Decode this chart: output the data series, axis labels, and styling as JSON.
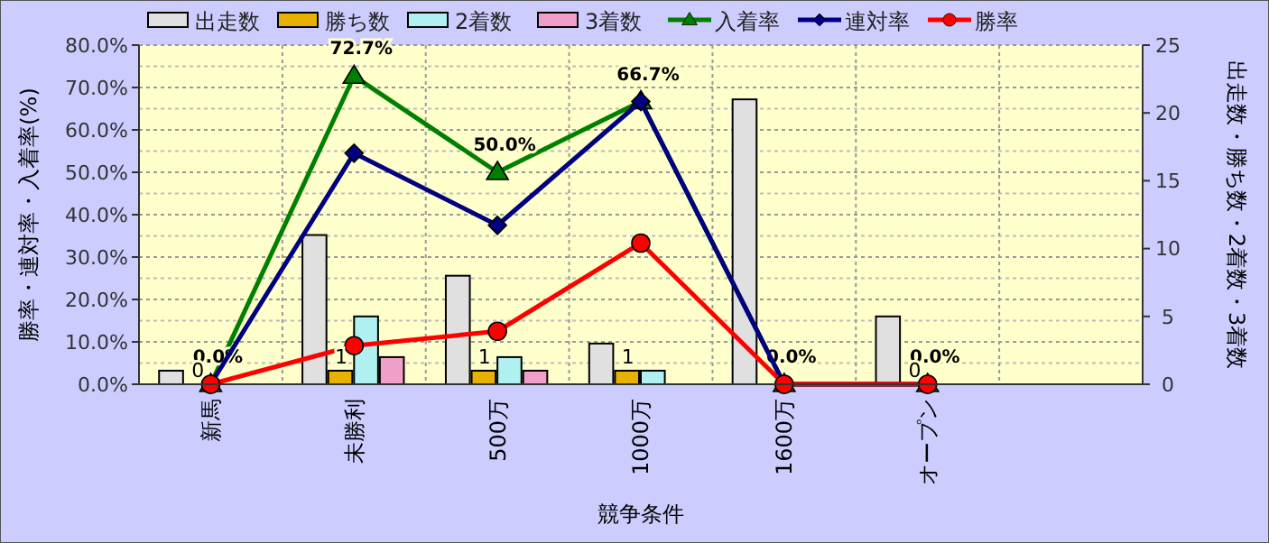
{
  "chart_data": {
    "type": "bar",
    "xlabel": "競争条件",
    "ylabel": "勝率・連対率・入着率(%)",
    "y2label": "出走数・勝ち数・2着数・3着数",
    "categories": [
      "新馬",
      "未勝利",
      "500万",
      "1000万",
      "1600万",
      "オープン",
      null
    ],
    "series": [
      {
        "name": "出走数",
        "color": "#e0e0e0",
        "axis": "y2",
        "values": [
          1,
          11,
          8,
          3,
          21,
          5,
          null
        ]
      },
      {
        "name": "勝ち数",
        "color": "#e8b000",
        "axis": "y2",
        "values": [
          0,
          1,
          1,
          1,
          0,
          0,
          null
        ],
        "value_labels": [
          "0",
          "1",
          "1",
          "1",
          null,
          "0",
          null
        ]
      },
      {
        "name": "2着数",
        "color": "#b0f0f0",
        "axis": "y2",
        "values": [
          0,
          5,
          2,
          1,
          0,
          0,
          null
        ]
      },
      {
        "name": "3着数",
        "color": "#f0a0c8",
        "axis": "y2",
        "values": [
          0,
          2,
          1,
          0,
          0,
          0,
          null
        ]
      },
      {
        "name": "入着率",
        "type": "line",
        "color": "#008000",
        "marker": "triangle",
        "values": [
          0,
          72.7,
          50,
          66.7,
          0,
          0,
          null
        ],
        "value_labels": [
          "0.0%",
          "72.7%",
          "50.0%",
          "66.7%",
          "0.0%",
          "0.0%",
          null
        ]
      },
      {
        "name": "連対率",
        "type": "line",
        "color": "#000080",
        "marker": "diamond",
        "values": [
          0,
          54.5,
          37.5,
          66.7,
          0,
          0,
          null
        ]
      },
      {
        "name": "勝率",
        "type": "line",
        "color": "#ff0000",
        "marker": "circle",
        "values": [
          0,
          9.1,
          12.5,
          33.3,
          0,
          0,
          null
        ]
      }
    ],
    "ylim": [
      0,
      80
    ],
    "yticks": [
      {
        "value": 0,
        "label": "0.0%"
      },
      {
        "value": 10,
        "label": "10.0%"
      },
      {
        "value": 20,
        "label": "20.0%"
      },
      {
        "value": 30,
        "label": "30.0%"
      },
      {
        "value": 40,
        "label": "40.0%"
      },
      {
        "value": 50,
        "label": "50.0%"
      },
      {
        "value": 60,
        "label": "60.0%"
      },
      {
        "value": 70,
        "label": "70.0%"
      },
      {
        "value": 80,
        "label": "80.0%"
      }
    ],
    "y2lim": [
      0,
      25
    ],
    "y2ticks": [
      0,
      5,
      10,
      15,
      20,
      25
    ],
    "grid": true,
    "legend": "top"
  }
}
